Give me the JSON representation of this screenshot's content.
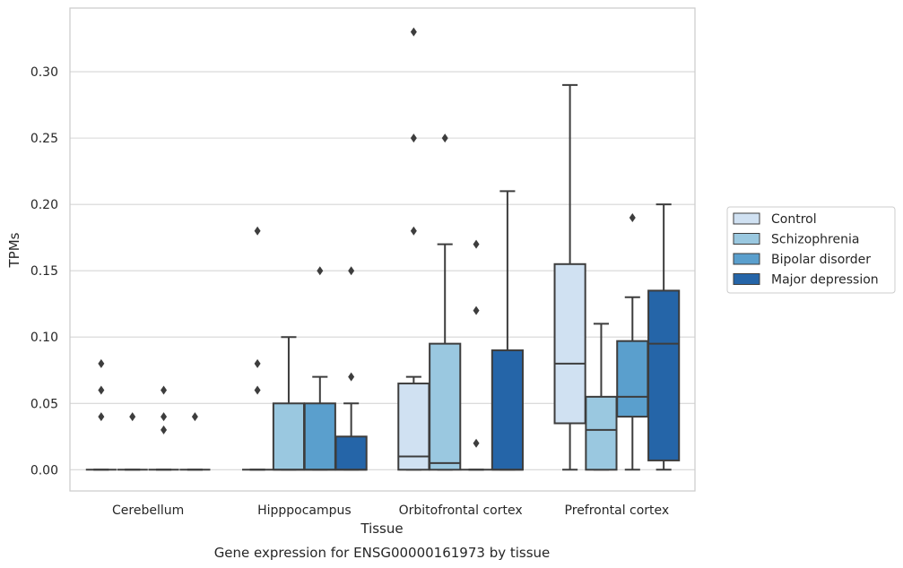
{
  "chart_data": {
    "type": "box",
    "caption": "Gene expression for ENSG00000161973 by tissue",
    "xlabel": "Tissue",
    "ylabel": "TPMs",
    "ylim": [
      -0.016,
      0.348
    ],
    "yticks": [
      0.0,
      0.05,
      0.1,
      0.15,
      0.2,
      0.25,
      0.3
    ],
    "ytick_labels": [
      "0.00",
      "0.05",
      "0.10",
      "0.15",
      "0.20",
      "0.25",
      "0.30"
    ],
    "grid": "horizontal",
    "legend_position": "right, outside plot",
    "categories": [
      "Cerebellum",
      "Hipppocampus",
      "Orbitofrontal cortex",
      "Prefrontal cortex"
    ],
    "series": [
      {
        "name": "Control",
        "color": "#d0e1f2",
        "boxes": [
          {
            "q1": 0.0,
            "median": 0.0,
            "q3": 0.0,
            "whisker_low": 0.0,
            "whisker_high": 0.0,
            "outliers": [
              0.04,
              0.06,
              0.08
            ]
          },
          {
            "q1": 0.0,
            "median": 0.0,
            "q3": 0.0,
            "whisker_low": 0.0,
            "whisker_high": 0.0,
            "outliers": [
              0.06,
              0.08,
              0.18
            ]
          },
          {
            "q1": 0.0,
            "median": 0.01,
            "q3": 0.065,
            "whisker_low": 0.0,
            "whisker_high": 0.07,
            "outliers": [
              0.18,
              0.25,
              0.33
            ]
          },
          {
            "q1": 0.035,
            "median": 0.08,
            "q3": 0.155,
            "whisker_low": 0.0,
            "whisker_high": 0.29,
            "outliers": []
          }
        ]
      },
      {
        "name": "Schizophrenia",
        "color": "#9ac8e0",
        "boxes": [
          {
            "q1": 0.0,
            "median": 0.0,
            "q3": 0.0,
            "whisker_low": 0.0,
            "whisker_high": 0.0,
            "outliers": [
              0.04
            ]
          },
          {
            "q1": 0.0,
            "median": 0.0,
            "q3": 0.05,
            "whisker_low": 0.0,
            "whisker_high": 0.1,
            "outliers": []
          },
          {
            "q1": 0.0,
            "median": 0.005,
            "q3": 0.095,
            "whisker_low": 0.0,
            "whisker_high": 0.17,
            "outliers": [
              0.25
            ]
          },
          {
            "q1": 0.0,
            "median": 0.03,
            "q3": 0.055,
            "whisker_low": 0.0,
            "whisker_high": 0.11,
            "outliers": []
          }
        ]
      },
      {
        "name": "Bipolar disorder",
        "color": "#5a9fcd",
        "boxes": [
          {
            "q1": 0.0,
            "median": 0.0,
            "q3": 0.0,
            "whisker_low": 0.0,
            "whisker_high": 0.0,
            "outliers": [
              0.03,
              0.04,
              0.06
            ]
          },
          {
            "q1": 0.0,
            "median": 0.0,
            "q3": 0.05,
            "whisker_low": 0.0,
            "whisker_high": 0.07,
            "outliers": [
              0.15
            ]
          },
          {
            "q1": 0.0,
            "median": 0.0,
            "q3": 0.0,
            "whisker_low": 0.0,
            "whisker_high": 0.0,
            "outliers": [
              0.02,
              0.12,
              0.17
            ]
          },
          {
            "q1": 0.04,
            "median": 0.055,
            "q3": 0.097,
            "whisker_low": 0.0,
            "whisker_high": 0.13,
            "outliers": [
              0.19
            ]
          }
        ]
      },
      {
        "name": "Major depression",
        "color": "#2565a8",
        "boxes": [
          {
            "q1": 0.0,
            "median": 0.0,
            "q3": 0.0,
            "whisker_low": 0.0,
            "whisker_high": 0.0,
            "outliers": [
              0.04
            ]
          },
          {
            "q1": 0.0,
            "median": 0.0,
            "q3": 0.025,
            "whisker_low": 0.0,
            "whisker_high": 0.05,
            "outliers": [
              0.07,
              0.15
            ]
          },
          {
            "q1": 0.0,
            "median": 0.0,
            "q3": 0.09,
            "whisker_low": 0.0,
            "whisker_high": 0.21,
            "outliers": []
          },
          {
            "q1": 0.007,
            "median": 0.095,
            "q3": 0.135,
            "whisker_low": 0.0,
            "whisker_high": 0.2,
            "outliers": []
          }
        ]
      }
    ]
  }
}
